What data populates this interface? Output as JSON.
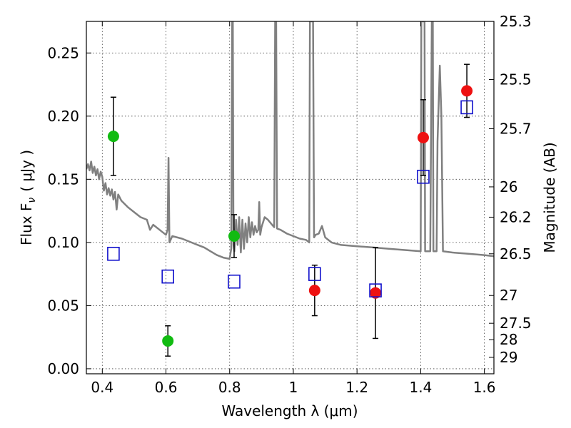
{
  "chart_data": {
    "type": "scatter",
    "xlabel": "Wavelength  λ (μm)",
    "ylabel": "Flux  F",
    "ylabel_sub": "ν",
    "ylabel_unit": "( μJy )",
    "y2label": "Magnitude (AB)",
    "xlim": [
      0.35,
      1.63
    ],
    "ylim": [
      -0.004,
      0.275
    ],
    "grid": true,
    "x_ticks": [
      0.4,
      0.6,
      0.8,
      1.0,
      1.2,
      1.4,
      1.6
    ],
    "x_tick_labels": [
      "0.4",
      "0.6",
      "0.8",
      "1",
      "1.2",
      "1.4",
      "1.6"
    ],
    "y_ticks": [
      0.0,
      0.05,
      0.1,
      0.15,
      0.2,
      0.25
    ],
    "y_tick_labels": [
      "0.00",
      "0.05",
      "0.10",
      "0.15",
      "0.20",
      "0.25"
    ],
    "mag_ticks": [
      {
        "label": "25.3",
        "flux": 0.275
      },
      {
        "label": "25.5",
        "flux": 0.229
      },
      {
        "label": "25.7",
        "flux": 0.19
      },
      {
        "label": "26",
        "flux": 0.144
      },
      {
        "label": "26.2",
        "flux": 0.12
      },
      {
        "label": "26.5",
        "flux": 0.091
      },
      {
        "label": "27",
        "flux": 0.058
      },
      {
        "label": "27.5",
        "flux": 0.036
      },
      {
        "label": "28",
        "flux": 0.023
      },
      {
        "label": "29",
        "flux": 0.009
      }
    ],
    "colors": {
      "spectrum": "#808080",
      "green": "#11bb11",
      "red": "#ee1111",
      "model": "#1111cc",
      "errorbar": "#000000"
    },
    "series": [
      {
        "marker": "circle",
        "color": "#11bb11",
        "points": [
          {
            "x": 0.435,
            "y": 0.184,
            "err": 0.031
          },
          {
            "x": 0.606,
            "y": 0.022,
            "err": 0.012
          },
          {
            "x": 0.814,
            "y": 0.105,
            "err": 0.017
          }
        ]
      },
      {
        "marker": "circle",
        "color": "#ee1111",
        "points": [
          {
            "x": 1.067,
            "y": 0.062,
            "err": 0.02
          },
          {
            "x": 1.258,
            "y": 0.06,
            "err": 0.036
          },
          {
            "x": 1.408,
            "y": 0.183,
            "err": 0.03
          },
          {
            "x": 1.545,
            "y": 0.22,
            "err": 0.021
          }
        ]
      },
      {
        "marker": "square",
        "color": "#1111cc",
        "points": [
          {
            "x": 0.435,
            "y": 0.091
          },
          {
            "x": 0.606,
            "y": 0.073
          },
          {
            "x": 0.814,
            "y": 0.069
          },
          {
            "x": 1.067,
            "y": 0.075
          },
          {
            "x": 1.258,
            "y": 0.062
          },
          {
            "x": 1.408,
            "y": 0.152
          },
          {
            "x": 1.545,
            "y": 0.207
          }
        ]
      }
    ],
    "spectrum": [
      [
        0.35,
        0.158
      ],
      [
        0.355,
        0.162
      ],
      [
        0.36,
        0.157
      ],
      [
        0.365,
        0.164
      ],
      [
        0.37,
        0.155
      ],
      [
        0.375,
        0.16
      ],
      [
        0.38,
        0.153
      ],
      [
        0.385,
        0.158
      ],
      [
        0.39,
        0.15
      ],
      [
        0.395,
        0.156
      ],
      [
        0.4,
        0.152
      ],
      [
        0.405,
        0.141
      ],
      [
        0.41,
        0.147
      ],
      [
        0.415,
        0.138
      ],
      [
        0.42,
        0.143
      ],
      [
        0.425,
        0.137
      ],
      [
        0.43,
        0.142
      ],
      [
        0.435,
        0.134
      ],
      [
        0.44,
        0.14
      ],
      [
        0.445,
        0.126
      ],
      [
        0.45,
        0.138
      ],
      [
        0.46,
        0.133
      ],
      [
        0.48,
        0.128
      ],
      [
        0.5,
        0.124
      ],
      [
        0.52,
        0.12
      ],
      [
        0.54,
        0.118
      ],
      [
        0.55,
        0.11
      ],
      [
        0.56,
        0.114
      ],
      [
        0.58,
        0.11
      ],
      [
        0.6,
        0.106
      ],
      [
        0.605,
        0.11
      ],
      [
        0.608,
        0.167
      ],
      [
        0.611,
        0.1
      ],
      [
        0.62,
        0.105
      ],
      [
        0.65,
        0.103
      ],
      [
        0.68,
        0.1
      ],
      [
        0.7,
        0.098
      ],
      [
        0.72,
        0.096
      ],
      [
        0.74,
        0.093
      ],
      [
        0.76,
        0.09
      ],
      [
        0.78,
        0.088
      ],
      [
        0.8,
        0.087
      ],
      [
        0.805,
        0.095
      ],
      [
        0.808,
        0.275
      ],
      [
        0.81,
        0.275
      ],
      [
        0.812,
        0.098
      ],
      [
        0.815,
        0.093
      ],
      [
        0.82,
        0.118
      ],
      [
        0.825,
        0.098
      ],
      [
        0.83,
        0.12
      ],
      [
        0.835,
        0.092
      ],
      [
        0.84,
        0.118
      ],
      [
        0.845,
        0.095
      ],
      [
        0.85,
        0.115
      ],
      [
        0.855,
        0.1
      ],
      [
        0.86,
        0.12
      ],
      [
        0.865,
        0.104
      ],
      [
        0.87,
        0.116
      ],
      [
        0.875,
        0.106
      ],
      [
        0.88,
        0.113
      ],
      [
        0.885,
        0.108
      ],
      [
        0.89,
        0.11
      ],
      [
        0.893,
        0.132
      ],
      [
        0.896,
        0.106
      ],
      [
        0.9,
        0.112
      ],
      [
        0.91,
        0.12
      ],
      [
        0.92,
        0.118
      ],
      [
        0.93,
        0.115
      ],
      [
        0.94,
        0.112
      ],
      [
        0.943,
        0.275
      ],
      [
        0.946,
        0.275
      ],
      [
        0.949,
        0.111
      ],
      [
        0.96,
        0.11
      ],
      [
        0.98,
        0.107
      ],
      [
        1.0,
        0.105
      ],
      [
        1.02,
        0.103
      ],
      [
        1.04,
        0.102
      ],
      [
        1.05,
        0.1
      ],
      [
        1.052,
        0.275
      ],
      [
        1.062,
        0.275
      ],
      [
        1.065,
        0.104
      ],
      [
        1.07,
        0.106
      ],
      [
        1.08,
        0.107
      ],
      [
        1.09,
        0.113
      ],
      [
        1.1,
        0.104
      ],
      [
        1.12,
        0.1
      ],
      [
        1.15,
        0.098
      ],
      [
        1.2,
        0.097
      ],
      [
        1.25,
        0.096
      ],
      [
        1.3,
        0.095
      ],
      [
        1.35,
        0.094
      ],
      [
        1.4,
        0.093
      ],
      [
        1.402,
        0.275
      ],
      [
        1.412,
        0.275
      ],
      [
        1.414,
        0.093
      ],
      [
        1.43,
        0.093
      ],
      [
        1.435,
        0.275
      ],
      [
        1.438,
        0.275
      ],
      [
        1.44,
        0.093
      ],
      [
        1.45,
        0.093
      ],
      [
        1.453,
        0.18
      ],
      [
        1.46,
        0.24
      ],
      [
        1.465,
        0.2
      ],
      [
        1.47,
        0.093
      ],
      [
        1.5,
        0.092
      ],
      [
        1.55,
        0.091
      ],
      [
        1.6,
        0.09
      ],
      [
        1.63,
        0.089
      ]
    ]
  }
}
